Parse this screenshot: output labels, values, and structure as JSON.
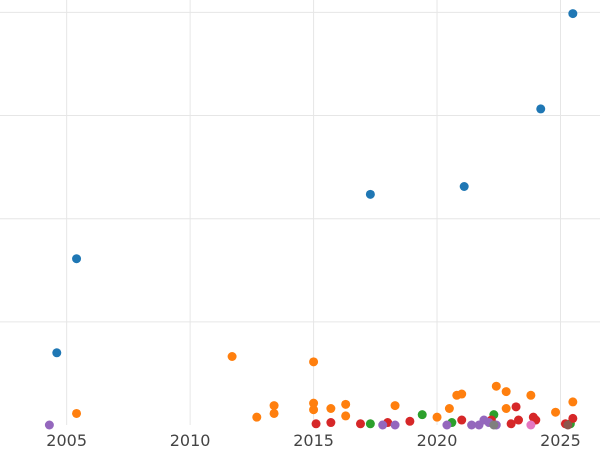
{
  "chart_data": {
    "type": "scatter",
    "title": "",
    "xlabel": "",
    "ylabel": "",
    "xlim": [
      2002.3,
      2026.6
    ],
    "ylim": [
      0,
      1.03
    ],
    "grid": true,
    "x_ticks": [
      {
        "value": 2005,
        "label": "2005"
      },
      {
        "value": 2010,
        "label": "2010"
      },
      {
        "value": 2015,
        "label": "2015"
      },
      {
        "value": 2020,
        "label": "2020"
      },
      {
        "value": 2025,
        "label": "2025"
      }
    ],
    "y_gridlines": [
      0.25,
      0.5,
      0.75,
      1.0
    ],
    "series": [
      {
        "color": "#1f77b4",
        "points": [
          {
            "x": 2004.6,
            "y": 0.175
          },
          {
            "x": 2005.4,
            "y": 0.403
          },
          {
            "x": 2017.3,
            "y": 0.559
          },
          {
            "x": 2021.1,
            "y": 0.578
          },
          {
            "x": 2024.2,
            "y": 0.766
          },
          {
            "x": 2025.5,
            "y": 0.997
          }
        ]
      },
      {
        "color": "#ff7f0e",
        "points": [
          {
            "x": 2005.4,
            "y": 0.028
          },
          {
            "x": 2011.7,
            "y": 0.166
          },
          {
            "x": 2012.7,
            "y": 0.019
          },
          {
            "x": 2013.4,
            "y": 0.047
          },
          {
            "x": 2013.4,
            "y": 0.028
          },
          {
            "x": 2015.0,
            "y": 0.153
          },
          {
            "x": 2015.0,
            "y": 0.053
          },
          {
            "x": 2015.0,
            "y": 0.037
          },
          {
            "x": 2015.7,
            "y": 0.04
          },
          {
            "x": 2016.3,
            "y": 0.05
          },
          {
            "x": 2016.3,
            "y": 0.022
          },
          {
            "x": 2018.3,
            "y": 0.047
          },
          {
            "x": 2020.0,
            "y": 0.019
          },
          {
            "x": 2020.5,
            "y": 0.04
          },
          {
            "x": 2020.8,
            "y": 0.072
          },
          {
            "x": 2021.0,
            "y": 0.075
          },
          {
            "x": 2022.4,
            "y": 0.094
          },
          {
            "x": 2022.8,
            "y": 0.081
          },
          {
            "x": 2022.8,
            "y": 0.04
          },
          {
            "x": 2023.8,
            "y": 0.072
          },
          {
            "x": 2024.8,
            "y": 0.031
          },
          {
            "x": 2025.5,
            "y": 0.056
          }
        ]
      },
      {
        "color": "#2ca02c",
        "points": [
          {
            "x": 2017.3,
            "y": 0.003
          },
          {
            "x": 2019.4,
            "y": 0.025
          },
          {
            "x": 2020.6,
            "y": 0.006
          },
          {
            "x": 2022.3,
            "y": 0.025
          },
          {
            "x": 2025.4,
            "y": 0.003
          }
        ]
      },
      {
        "color": "#d62728",
        "points": [
          {
            "x": 2015.1,
            "y": 0.003
          },
          {
            "x": 2015.7,
            "y": 0.006
          },
          {
            "x": 2016.9,
            "y": 0.003
          },
          {
            "x": 2018.0,
            "y": 0.006
          },
          {
            "x": 2018.9,
            "y": 0.009
          },
          {
            "x": 2021.0,
            "y": 0.012
          },
          {
            "x": 2022.2,
            "y": 0.012
          },
          {
            "x": 2023.0,
            "y": 0.003
          },
          {
            "x": 2023.2,
            "y": 0.044
          },
          {
            "x": 2023.3,
            "y": 0.012
          },
          {
            "x": 2023.9,
            "y": 0.019
          },
          {
            "x": 2024.0,
            "y": 0.012
          },
          {
            "x": 2025.2,
            "y": 0.003
          },
          {
            "x": 2025.5,
            "y": 0.016
          }
        ]
      },
      {
        "color": "#9467bd",
        "points": [
          {
            "x": 2004.3,
            "y": 0.0
          },
          {
            "x": 2017.8,
            "y": 0.0
          },
          {
            "x": 2018.3,
            "y": 0.0
          },
          {
            "x": 2020.4,
            "y": 0.0
          },
          {
            "x": 2021.4,
            "y": 0.0
          },
          {
            "x": 2021.7,
            "y": 0.0
          },
          {
            "x": 2021.9,
            "y": 0.012
          },
          {
            "x": 2022.1,
            "y": 0.006
          },
          {
            "x": 2022.4,
            "y": 0.0
          }
        ]
      },
      {
        "color": "#8c564b",
        "points": [
          {
            "x": 2025.3,
            "y": 0.0
          }
        ]
      },
      {
        "color": "#e377c2",
        "points": [
          {
            "x": 2023.8,
            "y": 0.0
          }
        ]
      },
      {
        "color": "#7f7f7f",
        "points": [
          {
            "x": 2022.3,
            "y": 0.0
          }
        ]
      }
    ]
  }
}
